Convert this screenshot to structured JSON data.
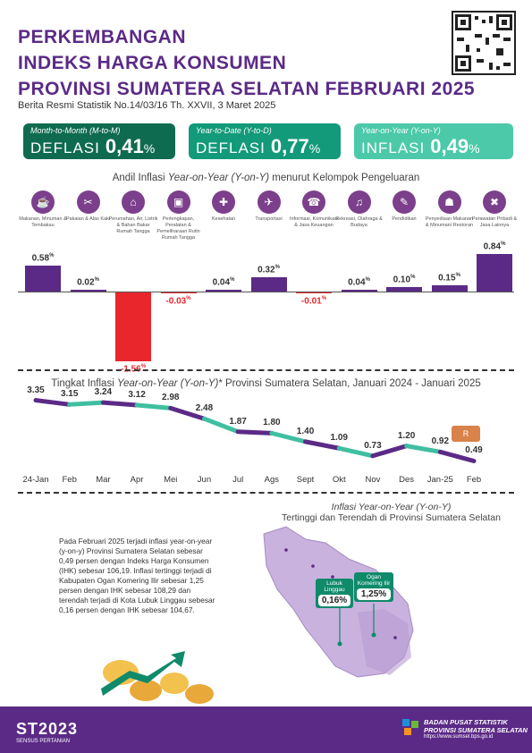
{
  "header": {
    "title_line1": "PERKEMBANGAN",
    "title_line2": "INDEKS HARGA KONSUMEN",
    "title_line3": "PROVINSI SUMATERA SELATAN FEBRUARI 2025",
    "subtitle": "Berita Resmi Statistik No.14/03/16 Th. XXVII, 3 Maret 2025"
  },
  "cards": {
    "mtm": {
      "label": "Month-to-Month (M-to-M)",
      "kind": "DEFLASI",
      "value": "0,41",
      "pct": "%",
      "color": "#0f6b4f"
    },
    "ytd": {
      "label": "Year-to-Date (Y-to-D)",
      "kind": "DEFLASI",
      "value": "0,77",
      "pct": "%",
      "color": "#129a7a"
    },
    "yoy": {
      "label": "Year-on-Year (Y-on-Y)",
      "kind": "INFLASI",
      "value": "0,49",
      "pct": "%",
      "color": "#4cc9a9"
    }
  },
  "andil": {
    "title_a": "Andil Inflasi ",
    "title_b": "Year-on-Year (Y-on-Y)",
    "title_c": " menurut Kelompok Pengeluaran",
    "groups": [
      {
        "label": "Makanan, Minuman & Tembakau",
        "value": "0.58",
        "pct": "%",
        "icon": "food-icon",
        "glyph": "☕"
      },
      {
        "label": "Pakaian & Alas Kaki",
        "value": "0.02",
        "pct": "%",
        "icon": "clothing-icon",
        "glyph": "✂"
      },
      {
        "label": "Perumahan, Air, Listrik & Bahan Bakar Rumah Tangga",
        "value": "-1.56",
        "pct": "%",
        "icon": "house-icon",
        "glyph": "⌂"
      },
      {
        "label": "Perlengkapan, Peralatan & Pemeliharaan Rutin Rumah Tangga",
        "value": "-0.03",
        "pct": "%",
        "icon": "appliance-icon",
        "glyph": "▣"
      },
      {
        "label": "Kesehatan",
        "value": "0.04",
        "pct": "%",
        "icon": "health-icon",
        "glyph": "✚"
      },
      {
        "label": "Transportasi",
        "value": "0.32",
        "pct": "%",
        "icon": "plane-icon",
        "glyph": "✈"
      },
      {
        "label": "Informasi, Komunikasi & Jasa Keuangan",
        "value": "-0.01",
        "pct": "%",
        "icon": "phone-icon",
        "glyph": "☎"
      },
      {
        "label": "Rekreasi, Olahraga & Budaya",
        "value": "0.04",
        "pct": "%",
        "icon": "recreation-icon",
        "glyph": "♫"
      },
      {
        "label": "Pendidikan",
        "value": "0.10",
        "pct": "%",
        "icon": "education-icon",
        "glyph": "✎"
      },
      {
        "label": "Penyediaan Makanan & Minuman/ Restoran",
        "value": "0.15",
        "pct": "%",
        "icon": "restaurant-icon",
        "glyph": "☗"
      },
      {
        "label": "Perawatan Pribadi & Jasa Lainnya",
        "value": "0.84",
        "pct": "%",
        "icon": "tools-icon",
        "glyph": "✖"
      }
    ],
    "positive_color": "#5b2a86",
    "negative_color": "#e8262b"
  },
  "trend": {
    "title_a": "Tingkat Inflasi ",
    "title_b": "Year-on-Year (Y-on-Y)",
    "title_c": "* Provinsi Sumatera Selatan, Januari 2024 - Januari 2025",
    "months": [
      "24-Jan",
      "Feb",
      "Mar",
      "Apr",
      "Mei",
      "Jun",
      "Jul",
      "Ags",
      "Sept",
      "Okt",
      "Nov",
      "Des",
      "Jan-25",
      "Feb"
    ],
    "values": [
      3.35,
      3.15,
      3.24,
      3.12,
      2.98,
      2.48,
      1.87,
      1.8,
      1.4,
      1.09,
      0.73,
      1.2,
      0.92,
      0.49
    ],
    "labels": [
      "3.35",
      "3.15",
      "3.24",
      "3.12",
      "2.98",
      "2.48",
      "1.87",
      "1.80",
      "1.40",
      "1.09",
      "0.73",
      "1.20",
      "0.92",
      "0.49"
    ],
    "line_purple": "#5b2a86",
    "line_teal": "#3fbfa0"
  },
  "map_section": {
    "title_a": "Inflasi Year-on-Year (Y-on-Y)",
    "title_b": "Tertinggi dan Terendah di Provinsi Sumatera Selatan",
    "paragraph": "Pada Februari 2025 terjadi inflasi year-on-year (y-on-y) Provinsi Sumatera Selatan sebesar 0,49 persen dengan Indeks Harga Konsumen (IHK) sebesar 106,19. Inflasi tertinggi terjadi di Kabupaten Ogan Komering Ilir sebesar 1,25 persen dengan IHK sebesar 108,29 dan terendah terjadi di Kota Lubuk Linggau sebesar 0,16 persen dengan IHK sebesar 104,67.",
    "low": {
      "name": "Lubuk Linggau",
      "value": "0,16%"
    },
    "high": {
      "name": "Ogan Komering Ilir",
      "value": "1,25%"
    }
  },
  "footer": {
    "st_logo": "ST2023",
    "st_sub": "SENSUS PERTANIAN",
    "org_line1": "BADAN PUSAT STATISTIK",
    "org_line2": "PROVINSI SUMATERA SELATAN",
    "url": "https://www.sumsel.bps.go.id"
  }
}
